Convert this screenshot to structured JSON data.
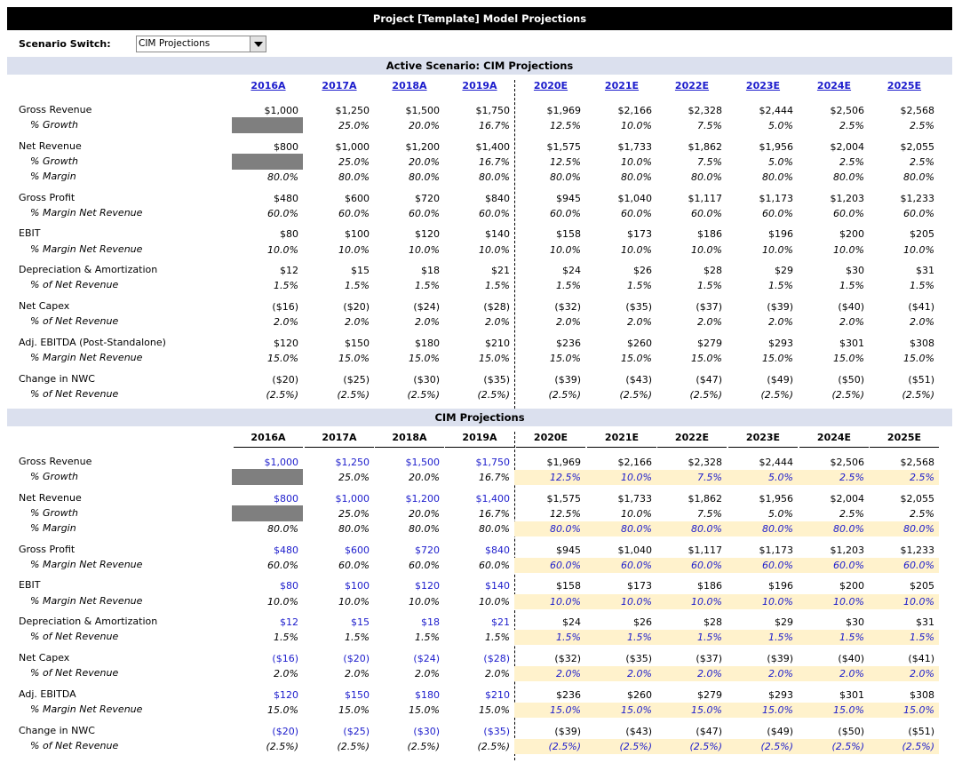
{
  "title": "Project [Template] Model Projections",
  "scenario_switch": {
    "label": "Scenario Switch:",
    "value": "CIM Projections"
  },
  "active_header": "Active Scenario: CIM Projections",
  "cim_header": "CIM Projections",
  "years": [
    "2016A",
    "2017A",
    "2018A",
    "2019A",
    "2020E",
    "2021E",
    "2022E",
    "2023E",
    "2024E",
    "2025E"
  ],
  "colors": {
    "input_blue": "#1c1ccc",
    "highlight": "#fff2cc",
    "band": "#dbe0ee",
    "hidden_cell": "#7f7f7f"
  },
  "active_rows": [
    {
      "label": "Gross Revenue",
      "values": [
        "$1,000",
        "$1,250",
        "$1,500",
        "$1,750",
        "$1,969",
        "$2,166",
        "$2,328",
        "$2,444",
        "$2,506",
        "$2,568"
      ]
    },
    {
      "label": "% Growth",
      "sub": true,
      "gray": true,
      "values": [
        "",
        "25.0%",
        "20.0%",
        "16.7%",
        "12.5%",
        "10.0%",
        "7.5%",
        "5.0%",
        "2.5%",
        "2.5%"
      ]
    },
    {
      "label": "Net Revenue",
      "values": [
        "$800",
        "$1,000",
        "$1,200",
        "$1,400",
        "$1,575",
        "$1,733",
        "$1,862",
        "$1,956",
        "$2,004",
        "$2,055"
      ]
    },
    {
      "label": "% Growth",
      "sub": true,
      "gray": true,
      "values": [
        "",
        "25.0%",
        "20.0%",
        "16.7%",
        "12.5%",
        "10.0%",
        "7.5%",
        "5.0%",
        "2.5%",
        "2.5%"
      ]
    },
    {
      "label": "% Margin",
      "sub": true,
      "values": [
        "80.0%",
        "80.0%",
        "80.0%",
        "80.0%",
        "80.0%",
        "80.0%",
        "80.0%",
        "80.0%",
        "80.0%",
        "80.0%"
      ]
    },
    {
      "label": "Gross Profit",
      "values": [
        "$480",
        "$600",
        "$720",
        "$840",
        "$945",
        "$1,040",
        "$1,117",
        "$1,173",
        "$1,203",
        "$1,233"
      ]
    },
    {
      "label": "% Margin Net Revenue",
      "sub": true,
      "values": [
        "60.0%",
        "60.0%",
        "60.0%",
        "60.0%",
        "60.0%",
        "60.0%",
        "60.0%",
        "60.0%",
        "60.0%",
        "60.0%"
      ]
    },
    {
      "label": "EBIT",
      "values": [
        "$80",
        "$100",
        "$120",
        "$140",
        "$158",
        "$173",
        "$186",
        "$196",
        "$200",
        "$205"
      ]
    },
    {
      "label": "% Margin Net Revenue",
      "sub": true,
      "values": [
        "10.0%",
        "10.0%",
        "10.0%",
        "10.0%",
        "10.0%",
        "10.0%",
        "10.0%",
        "10.0%",
        "10.0%",
        "10.0%"
      ]
    },
    {
      "label": "Depreciation & Amortization",
      "values": [
        "$12",
        "$15",
        "$18",
        "$21",
        "$24",
        "$26",
        "$28",
        "$29",
        "$30",
        "$31"
      ]
    },
    {
      "label": "% of Net Revenue",
      "sub": true,
      "values": [
        "1.5%",
        "1.5%",
        "1.5%",
        "1.5%",
        "1.5%",
        "1.5%",
        "1.5%",
        "1.5%",
        "1.5%",
        "1.5%"
      ]
    },
    {
      "label": "Net Capex",
      "values": [
        "($16)",
        "($20)",
        "($24)",
        "($28)",
        "($32)",
        "($35)",
        "($37)",
        "($39)",
        "($40)",
        "($41)"
      ]
    },
    {
      "label": "% of Net Revenue",
      "sub": true,
      "values": [
        "2.0%",
        "2.0%",
        "2.0%",
        "2.0%",
        "2.0%",
        "2.0%",
        "2.0%",
        "2.0%",
        "2.0%",
        "2.0%"
      ]
    },
    {
      "label": "Adj. EBITDA (Post-Standalone)",
      "values": [
        "$120",
        "$150",
        "$180",
        "$210",
        "$236",
        "$260",
        "$279",
        "$293",
        "$301",
        "$308"
      ]
    },
    {
      "label": "% Margin Net Revenue",
      "sub": true,
      "values": [
        "15.0%",
        "15.0%",
        "15.0%",
        "15.0%",
        "15.0%",
        "15.0%",
        "15.0%",
        "15.0%",
        "15.0%",
        "15.0%"
      ]
    },
    {
      "label": "Change in NWC",
      "values": [
        "($20)",
        "($25)",
        "($30)",
        "($35)",
        "($39)",
        "($43)",
        "($47)",
        "($49)",
        "($50)",
        "($51)"
      ]
    },
    {
      "label": "% of Net Revenue",
      "sub": true,
      "values": [
        "(2.5%)",
        "(2.5%)",
        "(2.5%)",
        "(2.5%)",
        "(2.5%)",
        "(2.5%)",
        "(2.5%)",
        "(2.5%)",
        "(2.5%)",
        "(2.5%)"
      ]
    }
  ],
  "cim_rows": [
    {
      "label": "Gross Revenue",
      "hist_input": true,
      "values": [
        "$1,000",
        "$1,250",
        "$1,500",
        "$1,750",
        "$1,969",
        "$2,166",
        "$2,328",
        "$2,444",
        "$2,506",
        "$2,568"
      ]
    },
    {
      "label": "% Growth",
      "sub": true,
      "gray": true,
      "proj_input": true,
      "values": [
        "",
        "25.0%",
        "20.0%",
        "16.7%",
        "12.5%",
        "10.0%",
        "7.5%",
        "5.0%",
        "2.5%",
        "2.5%"
      ]
    },
    {
      "label": "Net Revenue",
      "hist_input": true,
      "values": [
        "$800",
        "$1,000",
        "$1,200",
        "$1,400",
        "$1,575",
        "$1,733",
        "$1,862",
        "$1,956",
        "$2,004",
        "$2,055"
      ]
    },
    {
      "label": "% Growth",
      "sub": true,
      "gray": true,
      "values": [
        "",
        "25.0%",
        "20.0%",
        "16.7%",
        "12.5%",
        "10.0%",
        "7.5%",
        "5.0%",
        "2.5%",
        "2.5%"
      ]
    },
    {
      "label": "% Margin",
      "sub": true,
      "proj_input": true,
      "values": [
        "80.0%",
        "80.0%",
        "80.0%",
        "80.0%",
        "80.0%",
        "80.0%",
        "80.0%",
        "80.0%",
        "80.0%",
        "80.0%"
      ]
    },
    {
      "label": "Gross Profit",
      "hist_input": true,
      "values": [
        "$480",
        "$600",
        "$720",
        "$840",
        "$945",
        "$1,040",
        "$1,117",
        "$1,173",
        "$1,203",
        "$1,233"
      ]
    },
    {
      "label": "% Margin Net Revenue",
      "sub": true,
      "proj_input": true,
      "values": [
        "60.0%",
        "60.0%",
        "60.0%",
        "60.0%",
        "60.0%",
        "60.0%",
        "60.0%",
        "60.0%",
        "60.0%",
        "60.0%"
      ]
    },
    {
      "label": "EBIT",
      "hist_input": true,
      "values": [
        "$80",
        "$100",
        "$120",
        "$140",
        "$158",
        "$173",
        "$186",
        "$196",
        "$200",
        "$205"
      ]
    },
    {
      "label": "% Margin Net Revenue",
      "sub": true,
      "proj_input": true,
      "values": [
        "10.0%",
        "10.0%",
        "10.0%",
        "10.0%",
        "10.0%",
        "10.0%",
        "10.0%",
        "10.0%",
        "10.0%",
        "10.0%"
      ]
    },
    {
      "label": "Depreciation & Amortization",
      "hist_input": true,
      "values": [
        "$12",
        "$15",
        "$18",
        "$21",
        "$24",
        "$26",
        "$28",
        "$29",
        "$30",
        "$31"
      ]
    },
    {
      "label": "% of Net Revenue",
      "sub": true,
      "proj_input": true,
      "values": [
        "1.5%",
        "1.5%",
        "1.5%",
        "1.5%",
        "1.5%",
        "1.5%",
        "1.5%",
        "1.5%",
        "1.5%",
        "1.5%"
      ]
    },
    {
      "label": "Net Capex",
      "hist_input": true,
      "values": [
        "($16)",
        "($20)",
        "($24)",
        "($28)",
        "($32)",
        "($35)",
        "($37)",
        "($39)",
        "($40)",
        "($41)"
      ]
    },
    {
      "label": "% of Net Revenue",
      "sub": true,
      "proj_input": true,
      "values": [
        "2.0%",
        "2.0%",
        "2.0%",
        "2.0%",
        "2.0%",
        "2.0%",
        "2.0%",
        "2.0%",
        "2.0%",
        "2.0%"
      ]
    },
    {
      "label": "Adj. EBITDA",
      "hist_input": true,
      "values": [
        "$120",
        "$150",
        "$180",
        "$210",
        "$236",
        "$260",
        "$279",
        "$293",
        "$301",
        "$308"
      ]
    },
    {
      "label": "% Margin Net Revenue",
      "sub": true,
      "proj_input": true,
      "values": [
        "15.0%",
        "15.0%",
        "15.0%",
        "15.0%",
        "15.0%",
        "15.0%",
        "15.0%",
        "15.0%",
        "15.0%",
        "15.0%"
      ]
    },
    {
      "label": "Change in NWC",
      "hist_input": true,
      "values": [
        "($20)",
        "($25)",
        "($30)",
        "($35)",
        "($39)",
        "($43)",
        "($47)",
        "($49)",
        "($50)",
        "($51)"
      ]
    },
    {
      "label": "% of Net Revenue",
      "sub": true,
      "proj_input": true,
      "values": [
        "(2.5%)",
        "(2.5%)",
        "(2.5%)",
        "(2.5%)",
        "(2.5%)",
        "(2.5%)",
        "(2.5%)",
        "(2.5%)",
        "(2.5%)",
        "(2.5%)"
      ]
    }
  ]
}
